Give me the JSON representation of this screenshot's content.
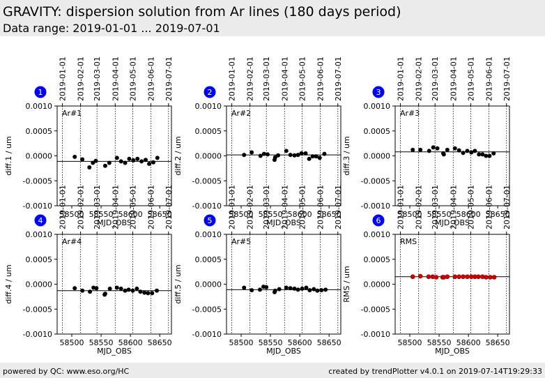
{
  "header": {
    "title": "GRAVITY: dispersion solution from Ar lines (180 days period)",
    "subtitle": "Data range: 2019-01-01 ... 2019-07-01"
  },
  "footer": {
    "left": "powered by QC: www.eso.org/HC",
    "right": "created by trendPlotter v4.0.1 on 2019-07-14T19:29:33"
  },
  "colors": {
    "badge": "#0000ff",
    "point": "#000000",
    "rms_point": "#cc0000"
  },
  "chart_data": [
    {
      "type": "scatter",
      "index": "1",
      "label": "Ar#1",
      "ylabel": "diff.1 / um",
      "xlabel": "MJD_OBS",
      "ylim": [
        -0.001,
        0.001
      ],
      "xlim": [
        58475,
        58670
      ],
      "xticks": [
        58500,
        58550,
        58600,
        58650
      ],
      "yticks": [
        "0.0010",
        "0.0005",
        "0.0000",
        "-0.0005",
        "-0.0010"
      ],
      "top_ticks": [
        "2019-01-01",
        "2019-02-01",
        "2019-03-01",
        "2019-04-01",
        "2019-05-01",
        "2019-06-01",
        "2019-07-01"
      ],
      "top_ticks_mjd": [
        58484,
        58515,
        58543,
        58574,
        58604,
        58635,
        58665
      ],
      "reference": -0.00011,
      "point_color": "#000000",
      "points": [
        [
          58505,
          -2e-05
        ],
        [
          58518,
          -7e-05
        ],
        [
          58530,
          -0.00023
        ],
        [
          58536,
          -0.00014
        ],
        [
          58541,
          -0.0001
        ],
        [
          58557,
          -0.0002
        ],
        [
          58564,
          -0.00014
        ],
        [
          58577,
          -4e-05
        ],
        [
          58584,
          -0.00011
        ],
        [
          58591,
          -0.00014
        ],
        [
          58598,
          -6e-05
        ],
        [
          58605,
          -9e-05
        ],
        [
          58612,
          -6e-05
        ],
        [
          58619,
          -0.00011
        ],
        [
          58626,
          -8e-05
        ],
        [
          58632,
          -0.00016
        ],
        [
          58639,
          -0.00013
        ],
        [
          58646,
          -4e-05
        ]
      ]
    },
    {
      "type": "scatter",
      "index": "2",
      "label": "Ar#2",
      "ylabel": "diff.2 / um",
      "xlabel": "MJD_OBS",
      "ylim": [
        -0.001,
        0.001
      ],
      "xlim": [
        58475,
        58670
      ],
      "xticks": [
        58500,
        58550,
        58600,
        58650
      ],
      "yticks": [
        "0.0010",
        "0.0005",
        "0.0000",
        "-0.0005",
        "-0.0010"
      ],
      "top_ticks": [
        "2019-01-01",
        "2019-02-01",
        "2019-03-01",
        "2019-04-01",
        "2019-05-01",
        "2019-06-01",
        "2019-07-01"
      ],
      "top_ticks_mjd": [
        58484,
        58515,
        58543,
        58574,
        58604,
        58635,
        58665
      ],
      "reference": 2e-05,
      "point_color": "#000000",
      "points": [
        [
          58505,
          2e-05
        ],
        [
          58518,
          7e-05
        ],
        [
          58533,
          0
        ],
        [
          58539,
          4e-05
        ],
        [
          58545,
          3e-05
        ],
        [
          58557,
          -8e-05
        ],
        [
          58558,
          -3e-05
        ],
        [
          58563,
          1e-05
        ],
        [
          58577,
          0.0001
        ],
        [
          58584,
          2e-05
        ],
        [
          58591,
          1e-05
        ],
        [
          58597,
          2e-05
        ],
        [
          58603,
          5e-05
        ],
        [
          58610,
          5e-05
        ],
        [
          58616,
          -6e-05
        ],
        [
          58622,
          -1e-05
        ],
        [
          58628,
          -1e-05
        ],
        [
          58634,
          -4e-05
        ],
        [
          58642,
          4e-05
        ]
      ]
    },
    {
      "type": "scatter",
      "index": "3",
      "label": "Ar#3",
      "ylabel": "diff.3 / um",
      "xlabel": "MJD_OBS",
      "ylim": [
        -0.001,
        0.001
      ],
      "xlim": [
        58475,
        58670
      ],
      "xticks": [
        58500,
        58550,
        58600,
        58650
      ],
      "yticks": [
        "0.0010",
        "0.0005",
        "0.0000",
        "-0.0005",
        "-0.0010"
      ],
      "top_ticks": [
        "2019-01-01",
        "2019-02-01",
        "2019-03-01",
        "2019-04-01",
        "2019-05-01",
        "2019-06-01",
        "2019-07-01"
      ],
      "top_ticks_mjd": [
        58484,
        58515,
        58543,
        58574,
        58604,
        58635,
        58665
      ],
      "reference": 8e-05,
      "point_color": "#000000",
      "points": [
        [
          58505,
          0.00012
        ],
        [
          58518,
          0.00012
        ],
        [
          58533,
          0.0001
        ],
        [
          58540,
          0.00017
        ],
        [
          58547,
          0.00015
        ],
        [
          58557,
          5e-05
        ],
        [
          58558,
          3e-05
        ],
        [
          58564,
          0.00012
        ],
        [
          58577,
          0.00015
        ],
        [
          58584,
          0.00011
        ],
        [
          58591,
          6e-05
        ],
        [
          58598,
          0.0001
        ],
        [
          58605,
          7e-05
        ],
        [
          58611,
          0.0001
        ],
        [
          58618,
          3e-05
        ],
        [
          58624,
          3e-05
        ],
        [
          58630,
          0
        ],
        [
          58636,
          0
        ],
        [
          58643,
          5e-05
        ]
      ]
    },
    {
      "type": "scatter",
      "index": "4",
      "label": "Ar#4",
      "ylabel": "diff.4 / um",
      "xlabel": "MJD_OBS",
      "ylim": [
        -0.001,
        0.001
      ],
      "xlim": [
        58475,
        58670
      ],
      "xticks": [
        58500,
        58550,
        58600,
        58650
      ],
      "yticks": [
        "0.0010",
        "0.0005",
        "0.0000",
        "-0.0005",
        "-0.0010"
      ],
      "top_ticks": [
        "2019-01-01",
        "2019-02-01",
        "2019-03-01",
        "2019-04-01",
        "2019-05-01",
        "2019-06-01",
        "2019-07-01"
      ],
      "top_ticks_mjd": [
        58484,
        58515,
        58543,
        58574,
        58604,
        58635,
        58665
      ],
      "reference": -0.00013,
      "point_color": "#000000",
      "points": [
        [
          58505,
          -8e-05
        ],
        [
          58518,
          -0.00013
        ],
        [
          58531,
          -0.00015
        ],
        [
          58537,
          -7e-05
        ],
        [
          58542,
          -8e-05
        ],
        [
          58556,
          -0.00021
        ],
        [
          58557,
          -0.00019
        ],
        [
          58565,
          -9e-05
        ],
        [
          58577,
          -7e-05
        ],
        [
          58584,
          -9e-05
        ],
        [
          58591,
          -0.00013
        ],
        [
          58597,
          -0.00011
        ],
        [
          58604,
          -0.00013
        ],
        [
          58611,
          -9e-05
        ],
        [
          58617,
          -0.00015
        ],
        [
          58624,
          -0.00017
        ],
        [
          58630,
          -0.00018
        ],
        [
          58637,
          -0.00018
        ],
        [
          58645,
          -0.00013
        ]
      ]
    },
    {
      "type": "scatter",
      "index": "5",
      "label": "Ar#5",
      "ylabel": "diff.5 / um",
      "xlabel": "MJD_OBS",
      "ylim": [
        -0.001,
        0.001
      ],
      "xlim": [
        58475,
        58670
      ],
      "xticks": [
        58500,
        58550,
        58600,
        58650
      ],
      "yticks": [
        "0.0010",
        "0.0005",
        "0.0000",
        "-0.0005",
        "-0.0010"
      ],
      "top_ticks": [
        "2019-01-01",
        "2019-02-01",
        "2019-03-01",
        "2019-04-01",
        "2019-05-01",
        "2019-06-01",
        "2019-07-01"
      ],
      "top_ticks_mjd": [
        58484,
        58515,
        58543,
        58574,
        58604,
        58635,
        58665
      ],
      "reference": -0.00011,
      "point_color": "#000000",
      "points": [
        [
          58505,
          -7e-05
        ],
        [
          58518,
          -0.00012
        ],
        [
          58532,
          -0.00011
        ],
        [
          58538,
          -5e-05
        ],
        [
          58543,
          -6e-05
        ],
        [
          58557,
          -0.00016
        ],
        [
          58558,
          -0.00013
        ],
        [
          58565,
          -0.0001
        ],
        [
          58577,
          -7e-05
        ],
        [
          58584,
          -8e-05
        ],
        [
          58591,
          -9e-05
        ],
        [
          58597,
          -0.00011
        ],
        [
          58604,
          -9e-05
        ],
        [
          58611,
          -7e-05
        ],
        [
          58617,
          -0.00012
        ],
        [
          58624,
          -0.0001
        ],
        [
          58630,
          -0.00013
        ],
        [
          58637,
          -0.00012
        ],
        [
          58644,
          -0.00011
        ]
      ]
    },
    {
      "type": "scatter",
      "index": "6",
      "label": "RMS",
      "ylabel": "RMS / um",
      "xlabel": "MJD_OBS",
      "ylim": [
        -0.001,
        0.001
      ],
      "xlim": [
        58475,
        58670
      ],
      "xticks": [
        58500,
        58550,
        58600,
        58650
      ],
      "yticks": [
        "0.0010",
        "0.0005",
        "0.0000",
        "-0.0005",
        "-0.0010"
      ],
      "top_ticks": [
        "2019-01-01",
        "2019-02-01",
        "2019-03-01",
        "2019-04-01",
        "2019-05-01",
        "2019-06-01",
        "2019-07-01"
      ],
      "top_ticks_mjd": [
        58484,
        58515,
        58543,
        58574,
        58604,
        58635,
        58665
      ],
      "reference": 0.00015,
      "point_color": "#cc0000",
      "points": [
        [
          58505,
          0.00015
        ],
        [
          58518,
          0.00016
        ],
        [
          58532,
          0.00015
        ],
        [
          58539,
          0.00015
        ],
        [
          58545,
          0.00014
        ],
        [
          58556,
          0.00014
        ],
        [
          58558,
          0.00014
        ],
        [
          58564,
          0.00015
        ],
        [
          58577,
          0.00015
        ],
        [
          58584,
          0.00015
        ],
        [
          58591,
          0.00015
        ],
        [
          58598,
          0.00015
        ],
        [
          58605,
          0.00015
        ],
        [
          58611,
          0.00015
        ],
        [
          58617,
          0.00015
        ],
        [
          58624,
          0.00015
        ],
        [
          58630,
          0.00014
        ],
        [
          58637,
          0.00014
        ],
        [
          58644,
          0.00014
        ]
      ]
    }
  ]
}
